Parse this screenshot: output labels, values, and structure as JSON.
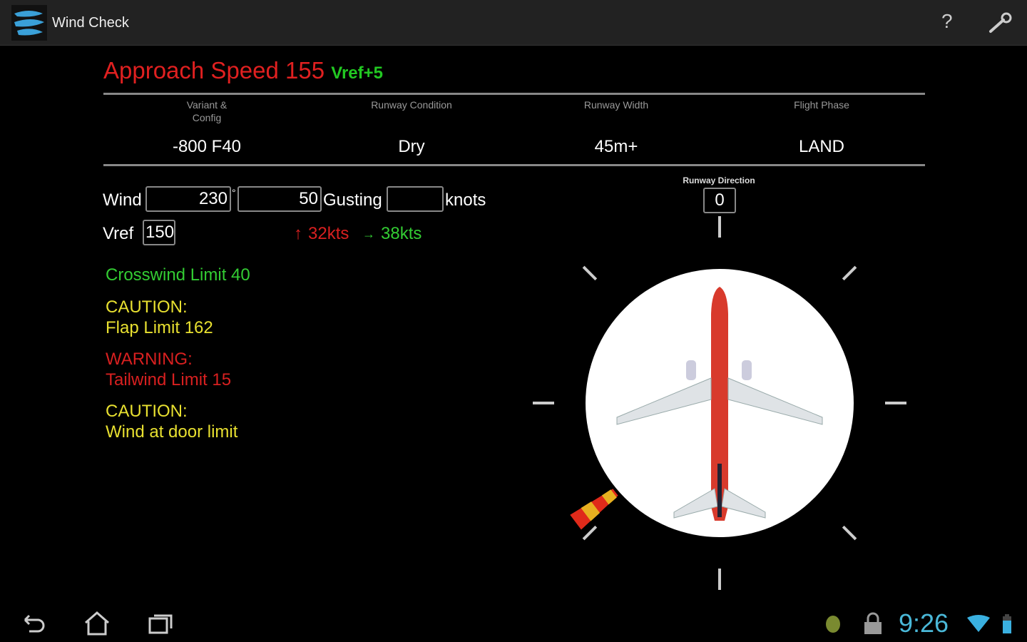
{
  "app": {
    "title": "Wind Check",
    "help_label": "?"
  },
  "header": {
    "approach_label": "Approach Speed 155",
    "additive": "Vref+5"
  },
  "config": [
    {
      "label": "Variant & Config",
      "value": "-800 F40"
    },
    {
      "label": "Runway Condition",
      "value": "Dry"
    },
    {
      "label": "Runway Width",
      "value": "45m+"
    },
    {
      "label": "Flight Phase",
      "value": "LAND"
    }
  ],
  "wind": {
    "label": "Wind",
    "direction": "230",
    "degree_symbol": "°",
    "speed": "50",
    "gusting_label": "Gusting",
    "gust": "",
    "units": "knots"
  },
  "vref": {
    "label": "Vref",
    "value": "150"
  },
  "components": {
    "headwind_arrow": "↑",
    "headwind": "32kts",
    "crosswind_arrow": "→",
    "crosswind": "38kts",
    "headwind_color": "#d82020",
    "crosswind_color": "#33cc33"
  },
  "runway": {
    "label": "Runway Direction",
    "value": "0"
  },
  "messages": [
    {
      "title": "Crosswind Limit 40",
      "text": "",
      "color": "#33cc33"
    },
    {
      "title": "CAUTION:",
      "text": "Flap Limit 162",
      "color": "#e8e030"
    },
    {
      "title": "WARNING:",
      "text": "Tailwind Limit 15",
      "color": "#d82020"
    },
    {
      "title": "CAUTION:",
      "text": "Wind at door limit",
      "color": "#e8e030"
    }
  ],
  "status": {
    "time": "9:26"
  },
  "icons": [
    "app-logo-icon",
    "help-icon",
    "wrench-icon",
    "back-icon",
    "home-icon",
    "recent-apps-icon",
    "android-icon",
    "lock-icon",
    "wifi-icon",
    "battery-icon",
    "windsock-icon",
    "airplane-icon"
  ]
}
